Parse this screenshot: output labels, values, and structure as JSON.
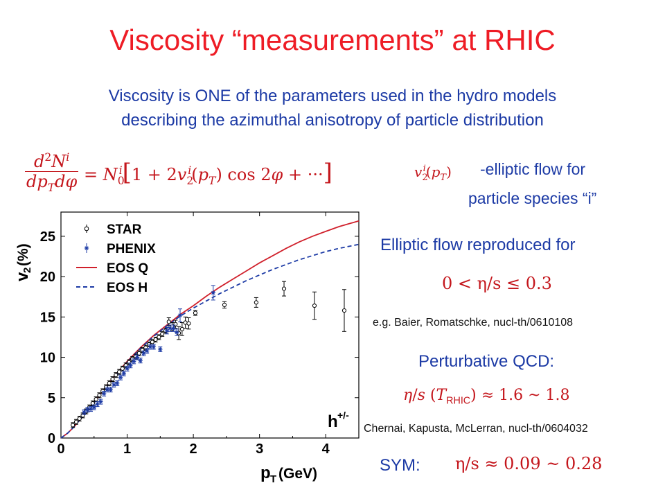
{
  "slide": {
    "title": "Viscosity “measurements” at RHIC",
    "subtitle_line1": "Viscosity is ONE of the parameters used in the hydro models",
    "subtitle_line2": "describing the azimuthal anisotropy of particle distribution",
    "v2_caption_line1": "-elliptic flow for",
    "v2_caption_line2": "particle species “i”",
    "elliptic_heading": "Elliptic flow reproduced for",
    "eta_s_range": "0 < η/s ≤ 0.3",
    "ref_baier": "e.g. Baier, Romatschke, nucl-th/0610108",
    "pqcd_heading": "Perturbative QCD:",
    "pqcd_formula": "η/s (T_RHIC) ≈ 1.6 ~ 1.8",
    "ref_chernai": "Chernai, Kapusta, McLerran, nucl-th/0604032",
    "sym_label": "SYM:",
    "sym_formula": "η/s ≈ 0.09 ~ 0.28",
    "equation": "d²Nⁱ/(dp_T dφ) = N₀ⁱ [1 + 2v₂ⁱ(p_T) cos 2φ + ···]",
    "v2_symbol": "v₂ⁱ(p_T)"
  },
  "chart_data": {
    "type": "scatter",
    "xlabel": "p_T (GeV)",
    "ylabel": "v_2 (%)",
    "annotation": "h^{+/-}",
    "xlim": [
      0,
      4.5
    ],
    "ylim": [
      0,
      28
    ],
    "xticks": [
      "0",
      "1",
      "2",
      "3",
      "4"
    ],
    "yticks": [
      "0",
      "5",
      "10",
      "15",
      "20",
      "25"
    ],
    "legend": [
      "STAR",
      "PHENIX",
      "EOS Q",
      "EOS H"
    ],
    "legend_position": "top-left",
    "series": [
      {
        "name": "STAR",
        "kind": "points",
        "marker": "open-circle",
        "color": "#000000",
        "x": [
          0.18,
          0.23,
          0.28,
          0.33,
          0.38,
          0.43,
          0.48,
          0.53,
          0.58,
          0.63,
          0.68,
          0.73,
          0.78,
          0.83,
          0.88,
          0.93,
          0.98,
          1.03,
          1.08,
          1.13,
          1.18,
          1.23,
          1.28,
          1.33,
          1.38,
          1.43,
          1.48,
          1.53,
          1.58,
          1.63,
          1.68,
          1.73,
          1.78,
          1.83,
          1.88,
          1.93,
          2.03,
          2.47,
          2.95,
          3.37,
          3.83,
          4.28
        ],
        "y": [
          1.6,
          2.0,
          2.4,
          2.8,
          3.3,
          3.8,
          4.3,
          4.8,
          5.3,
          5.8,
          6.3,
          6.8,
          7.3,
          7.8,
          8.2,
          8.6,
          9.0,
          9.4,
          9.8,
          10.1,
          10.5,
          10.9,
          11.2,
          11.6,
          11.9,
          12.2,
          12.5,
          12.9,
          13.3,
          14.4,
          13.8,
          14.1,
          13.0,
          13.5,
          14.3,
          14.2,
          15.5,
          16.5,
          16.8,
          18.5,
          16.4,
          15.8
        ],
        "yerr": [
          0.3,
          0.3,
          0.3,
          0.3,
          0.3,
          0.3,
          0.3,
          0.3,
          0.3,
          0.3,
          0.3,
          0.3,
          0.3,
          0.3,
          0.3,
          0.3,
          0.3,
          0.3,
          0.3,
          0.3,
          0.3,
          0.3,
          0.3,
          0.3,
          0.3,
          0.3,
          0.3,
          0.3,
          0.3,
          0.5,
          0.5,
          0.5,
          0.8,
          0.8,
          0.7,
          0.7,
          0.3,
          0.4,
          0.6,
          0.9,
          1.7,
          2.6
        ]
      },
      {
        "name": "PHENIX",
        "kind": "points",
        "marker": "star",
        "color": "#1c3aa5",
        "x": [
          0.35,
          0.4,
          0.45,
          0.5,
          0.55,
          0.6,
          0.65,
          0.7,
          0.75,
          0.8,
          0.85,
          0.9,
          0.95,
          1.0,
          1.05,
          1.1,
          1.15,
          1.2,
          1.25,
          1.3,
          1.35,
          1.4,
          1.5,
          1.6,
          1.65,
          1.7,
          1.75,
          1.8,
          2.3
        ],
        "y": [
          3.2,
          3.5,
          3.6,
          3.8,
          4.2,
          4.5,
          5.5,
          6.0,
          6.0,
          6.6,
          6.8,
          7.5,
          8.0,
          8.6,
          9.0,
          9.5,
          10.0,
          9.6,
          10.5,
          10.8,
          11.3,
          11.3,
          11.0,
          13.3,
          13.6,
          13.6,
          13.1,
          15.2,
          18.0
        ],
        "yerr": [
          0.3,
          0.3,
          0.3,
          0.3,
          0.3,
          0.3,
          0.3,
          0.3,
          0.3,
          0.3,
          0.3,
          0.3,
          0.3,
          0.3,
          0.3,
          0.3,
          0.3,
          0.3,
          0.3,
          0.3,
          0.3,
          0.3,
          0.3,
          0.4,
          0.4,
          0.4,
          0.4,
          0.8,
          0.9
        ]
      },
      {
        "name": "EOS Q",
        "kind": "line",
        "style": "solid",
        "color": "#d0202b",
        "x": [
          0,
          0.1,
          0.2,
          0.4,
          0.6,
          0.8,
          1.0,
          1.2,
          1.4,
          1.6,
          1.8,
          2.0,
          2.2,
          2.4,
          2.6,
          2.8,
          3.0,
          3.2,
          3.4,
          3.6,
          3.8,
          4.0,
          4.2,
          4.5
        ],
        "y": [
          0,
          0.6,
          1.4,
          3.4,
          5.5,
          7.6,
          9.5,
          11.2,
          12.7,
          14.0,
          15.3,
          16.4,
          17.6,
          18.7,
          19.7,
          20.7,
          21.7,
          22.6,
          23.5,
          24.3,
          25.0,
          25.6,
          26.2,
          26.9
        ]
      },
      {
        "name": "EOS H",
        "kind": "line",
        "style": "dashed",
        "color": "#1c3aa5",
        "x": [
          0,
          0.1,
          0.2,
          0.4,
          0.6,
          0.8,
          1.0,
          1.2,
          1.4,
          1.6,
          1.8,
          2.0,
          2.2,
          2.4,
          2.6,
          2.8,
          3.0,
          3.2,
          3.4,
          3.6,
          3.8,
          4.0,
          4.2,
          4.5
        ],
        "y": [
          0,
          0.6,
          1.4,
          3.4,
          5.4,
          7.5,
          9.4,
          11.1,
          12.6,
          13.9,
          15.1,
          16.1,
          17.0,
          17.9,
          18.7,
          19.5,
          20.2,
          20.9,
          21.5,
          22.1,
          22.6,
          23.1,
          23.5,
          24.0
        ]
      }
    ]
  }
}
